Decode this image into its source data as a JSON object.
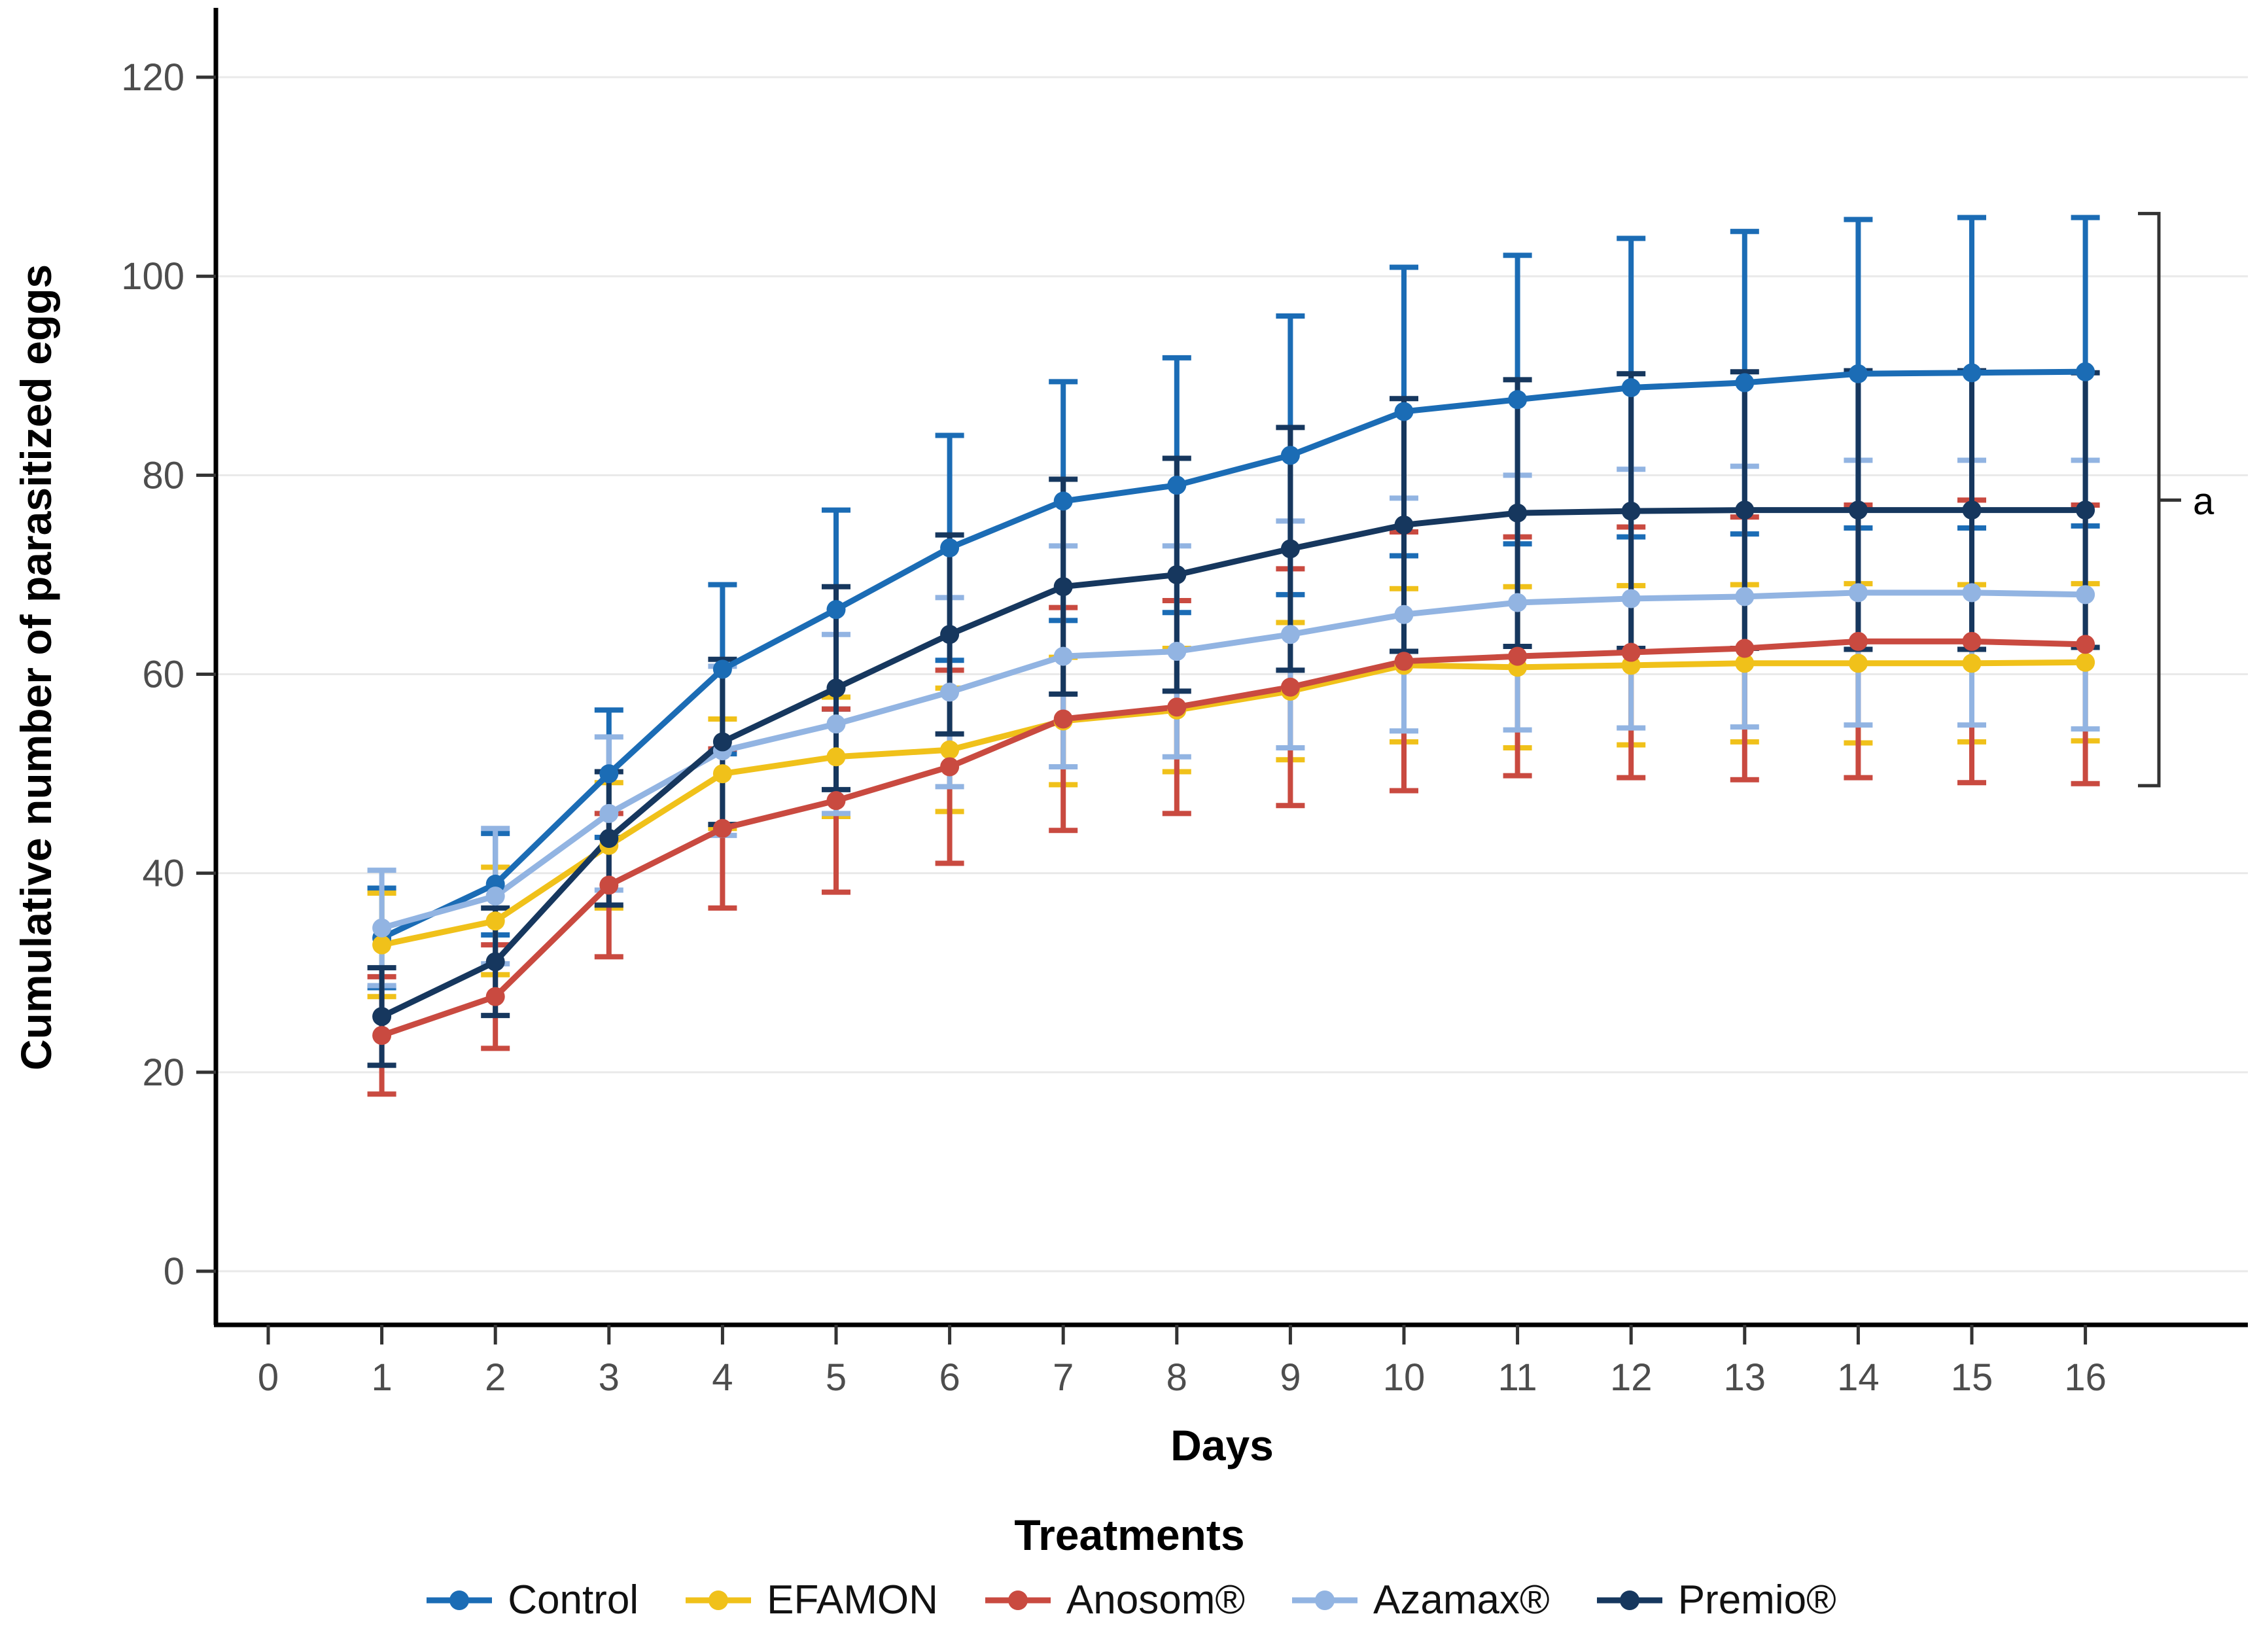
{
  "figure": {
    "background": "#FFFFFF",
    "axis_color": "#000000",
    "grid_color": "#E9E9E9",
    "tick_color": "#333333",
    "tick_label_color": "#4D4D4D"
  },
  "chart_data": {
    "type": "line",
    "title": "",
    "xlabel": "Days",
    "ylabel": "Cumulative number of parasitized eggs",
    "legend_title": "Treatments",
    "legend_position": "bottom",
    "grid": "horizontal-only",
    "x_ticks": [
      0,
      1,
      2,
      3,
      4,
      5,
      6,
      7,
      8,
      9,
      10,
      11,
      12,
      13,
      14,
      15,
      16
    ],
    "y_ticks": [
      0,
      20,
      40,
      60,
      80,
      100,
      120
    ],
    "ylim": [
      0,
      120
    ],
    "x": [
      1,
      2,
      3,
      4,
      5,
      6,
      7,
      8,
      9,
      10,
      11,
      12,
      13,
      14,
      15,
      16
    ],
    "series": [
      {
        "name": "Control",
        "color": "#1B6CB5",
        "values": [
          33.5,
          38.9,
          50.0,
          60.5,
          66.5,
          72.7,
          77.4,
          79.0,
          82.0,
          86.4,
          87.6,
          88.8,
          89.3,
          90.2,
          90.3,
          90.4
        ],
        "errors": [
          5.0,
          5.1,
          6.4,
          8.5,
          10.0,
          11.3,
          12.0,
          12.8,
          14.0,
          14.5,
          14.5,
          15.0,
          15.2,
          15.5,
          15.6,
          15.5
        ]
      },
      {
        "name": "EFAMON",
        "color": "#F0C11A",
        "values": [
          32.8,
          35.2,
          42.8,
          50.0,
          51.7,
          52.4,
          55.3,
          56.4,
          58.3,
          60.9,
          60.7,
          60.9,
          61.1,
          61.1,
          61.1,
          61.2
        ],
        "errors": [
          5.2,
          5.4,
          6.3,
          5.5,
          6.0,
          6.2,
          6.4,
          6.2,
          6.9,
          7.7,
          8.1,
          8.0,
          7.9,
          8.0,
          7.9,
          7.9
        ]
      },
      {
        "name": "Anosom®",
        "color": "#C94A40",
        "values": [
          23.7,
          27.6,
          38.8,
          44.5,
          47.3,
          50.7,
          55.5,
          56.7,
          58.7,
          61.3,
          61.8,
          62.2,
          62.6,
          63.3,
          63.3,
          63.0
        ],
        "errors": [
          5.9,
          5.2,
          7.2,
          8.0,
          9.2,
          9.7,
          11.2,
          10.7,
          11.9,
          13.0,
          12.0,
          12.6,
          13.2,
          13.7,
          14.2,
          14.0
        ]
      },
      {
        "name": "Azamax®",
        "color": "#92B4E2",
        "values": [
          34.5,
          37.7,
          46.0,
          52.3,
          55.0,
          58.2,
          61.8,
          62.3,
          64.0,
          66.0,
          67.2,
          67.6,
          67.8,
          68.2,
          68.2,
          68.0
        ],
        "errors": [
          5.8,
          6.8,
          7.7,
          8.5,
          9.0,
          9.5,
          11.1,
          10.6,
          11.4,
          11.7,
          12.8,
          13.0,
          13.1,
          13.3,
          13.3,
          13.5
        ]
      },
      {
        "name": "Premio®",
        "color": "#16375E",
        "values": [
          25.6,
          31.1,
          43.5,
          53.2,
          58.6,
          64.0,
          68.8,
          70.0,
          72.6,
          75.0,
          76.2,
          76.4,
          76.5,
          76.5,
          76.5,
          76.5
        ],
        "errors": [
          4.9,
          5.4,
          6.7,
          8.3,
          10.2,
          10.0,
          10.8,
          11.7,
          12.2,
          12.7,
          13.4,
          13.8,
          13.9,
          14.0,
          14.0,
          13.8
        ]
      }
    ],
    "significance_bracket": {
      "label": "a",
      "y_top": 106.3,
      "y_bottom": 48.8,
      "y_mid": 77.5
    }
  }
}
